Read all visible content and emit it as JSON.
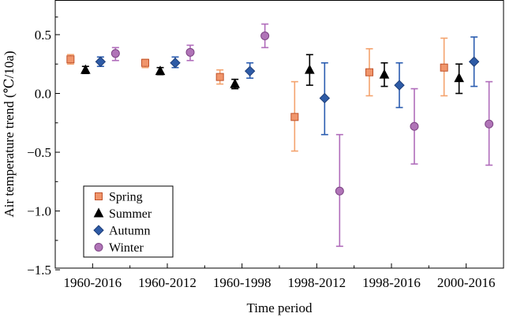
{
  "chart_data": {
    "type": "scatter",
    "xlabel": "Time period",
    "ylabel": "Air temperature trend (℃/10a)",
    "categories": [
      "1960-2016",
      "1960-2012",
      "1960-1998",
      "1998-2012",
      "1998-2016",
      "2000-2016"
    ],
    "ylim": [
      -1.5,
      0.7
    ],
    "yticks": [
      0.5,
      0.0,
      -0.5,
      -1.0,
      -1.5
    ],
    "ytick_labels": [
      "0.5",
      "0.0",
      "−0.5",
      "−1.0",
      "−1.5"
    ],
    "grid": false,
    "legend_position": "bottom-left",
    "series": [
      {
        "name": "Spring",
        "marker": "square",
        "fill": "#f0956b",
        "edge": "#c0522a",
        "bar_color": "#f4a36e",
        "values": [
          0.29,
          0.26,
          0.14,
          -0.2,
          0.18,
          0.22
        ],
        "lower": [
          0.25,
          0.22,
          0.08,
          -0.49,
          -0.02,
          -0.02
        ],
        "upper": [
          0.33,
          0.29,
          0.2,
          0.1,
          0.38,
          0.47
        ]
      },
      {
        "name": "Summer",
        "marker": "triangle",
        "fill": "#000000",
        "edge": "#000000",
        "bar_color": "#000000",
        "values": [
          0.2,
          0.19,
          0.08,
          0.2,
          0.16,
          0.13
        ],
        "lower": [
          0.17,
          0.16,
          0.04,
          0.07,
          0.06,
          0.0
        ],
        "upper": [
          0.23,
          0.22,
          0.12,
          0.33,
          0.26,
          0.25
        ]
      },
      {
        "name": "Autumn",
        "marker": "diamond",
        "fill": "#2e5ba6",
        "edge": "#1f3f7a",
        "bar_color": "#2a5cb0",
        "values": [
          0.27,
          0.26,
          0.19,
          -0.04,
          0.07,
          0.27
        ],
        "lower": [
          0.23,
          0.22,
          0.13,
          -0.35,
          -0.12,
          0.06
        ],
        "upper": [
          0.31,
          0.31,
          0.26,
          0.26,
          0.26,
          0.48
        ]
      },
      {
        "name": "Winter",
        "marker": "circle",
        "fill": "#b074b7",
        "edge": "#7d4585",
        "bar_color": "#b06cbb",
        "values": [
          0.34,
          0.35,
          0.49,
          -0.83,
          -0.28,
          -0.26
        ],
        "lower": [
          0.28,
          0.28,
          0.39,
          -1.3,
          -0.6,
          -0.61
        ],
        "upper": [
          0.39,
          0.41,
          0.59,
          -0.35,
          0.04,
          0.1
        ]
      }
    ]
  }
}
